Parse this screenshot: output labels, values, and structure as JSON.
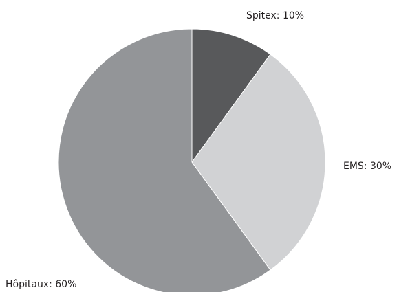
{
  "chart_data": {
    "type": "pie",
    "title": "",
    "slices": [
      {
        "label": "Spitex",
        "value": 10,
        "display": "Spitex: 10%",
        "color": "#58595b"
      },
      {
        "label": "EMS",
        "value": 30,
        "display": "EMS: 30%",
        "color": "#d1d2d4"
      },
      {
        "label": "Hôpitaux",
        "value": 60,
        "display": "Hôpitaux: 60%",
        "color": "#939598"
      }
    ],
    "start_angle": "12 o'clock",
    "direction": "clockwise",
    "legend": "none",
    "labels_position": "outside"
  }
}
